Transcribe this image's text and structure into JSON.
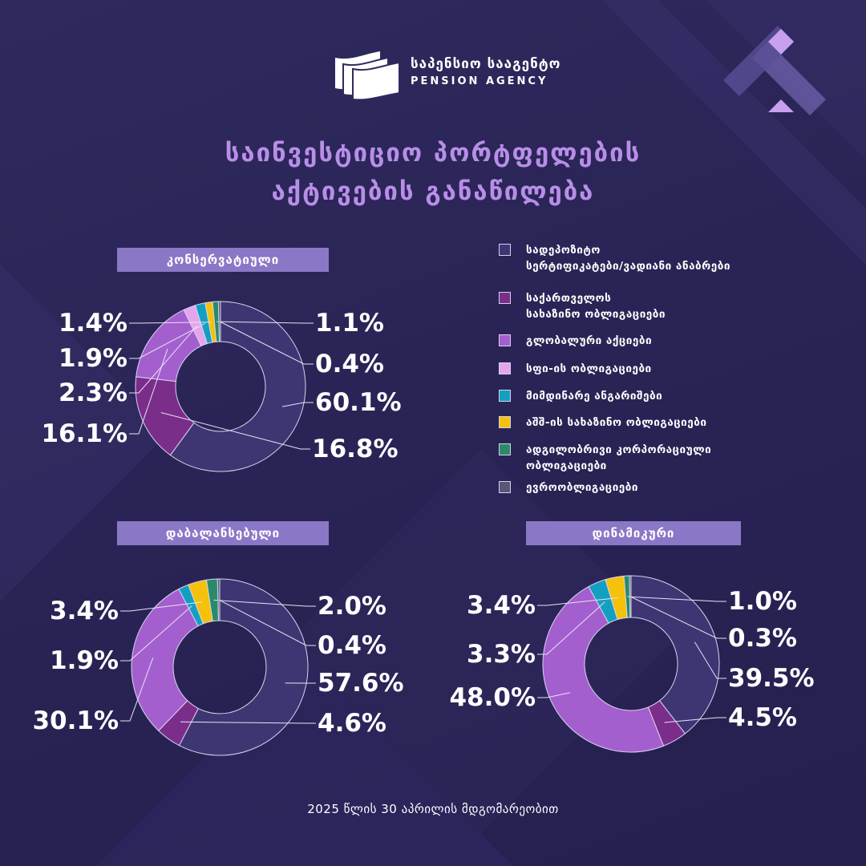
{
  "brand": {
    "name_ka": "საპენსიო სააგენტო",
    "name_en": "PENSION AGENCY"
  },
  "title": {
    "line1": "საინვესტიციო პორტფელების",
    "line2": "აქტივების განაწილება"
  },
  "footer": "2025 წლის 30 აპრილის მდგომარეობით",
  "legend": [
    {
      "label": "სადეპოზიტო\nსერტიფიკატები/ვადიანი ანაბრები",
      "color": "#3e3673"
    },
    {
      "label": "საქართველოს\nსახაზინო ობლიგაციები",
      "color": "#7b2d8a"
    },
    {
      "label": "გლობალური აქციები",
      "color": "#a45fcf"
    },
    {
      "label": "სფი-ის ობლიგაციები",
      "color": "#e4a5ee"
    },
    {
      "label": "მიმდინარე ანგარიშები",
      "color": "#13a0c0"
    },
    {
      "label": "აშშ-ის სახაზინო ობლიგაციები",
      "color": "#f5c10a"
    },
    {
      "label": "ადგილობრივი კორპორაციული\nობლიგაციები",
      "color": "#2a8a68"
    },
    {
      "label": "ევროობლიგაციები",
      "color": "#585778"
    }
  ],
  "chart_data": [
    {
      "type": "pie",
      "title": "კონსერვატიული",
      "categories": [
        "სადეპოზიტო სერტიფიკატები/ვადიანი ანაბრები",
        "საქართველოს სახაზინო ობლიგაციები",
        "გლობალური აქციები",
        "სფი-ის ობლიგაციები",
        "მიმდინარე ანგარიშები",
        "აშშ-ის სახაზინო ობლიგაციები",
        "ადგილობრივი კორპორაციული ობლიგაციები",
        "ევროობლიგაციები"
      ],
      "values": [
        60.1,
        16.8,
        16.1,
        2.3,
        1.9,
        1.4,
        1.1,
        0.4
      ],
      "labels": [
        "60.1%",
        "16.8%",
        "16.1%",
        "2.3%",
        "1.9%",
        "1.4%",
        "1.1%",
        "0.4%"
      ]
    },
    {
      "type": "pie",
      "title": "დაბალანსებული",
      "categories": [
        "სადეპოზიტო სერტიფიკატები/ვადიანი ანაბრები",
        "საქართველოს სახაზინო ობლიგაციები",
        "გლობალური აქციები",
        "მიმდინარე ანგარიშები",
        "აშშ-ის სახაზინო ობლიგაციები",
        "ადგილობრივი კორპორაციული ობლიგაციები",
        "ევროობლიგაციები"
      ],
      "values": [
        57.6,
        4.6,
        30.1,
        1.9,
        3.4,
        2.0,
        0.4
      ],
      "labels": [
        "57.6%",
        "4.6%",
        "30.1%",
        "1.9%",
        "3.4%",
        "2.0%",
        "0.4%"
      ]
    },
    {
      "type": "pie",
      "title": "დინამიკური",
      "categories": [
        "სადეპოზიტო სერტიფიკატები/ვადიანი ანაბრები",
        "საქართველოს სახაზინო ობლიგაციები",
        "გლობალური აქციები",
        "მიმდინარე ანგარიშები",
        "აშშ-ის სახაზინო ობლიგაციები",
        "ადგილობრივი კორპორაციული ობლიგაციები",
        "ევროობლიგაციები"
      ],
      "values": [
        39.5,
        4.5,
        48.0,
        3.3,
        3.4,
        1.0,
        0.3
      ],
      "labels": [
        "39.5%",
        "4.5%",
        "48.0%",
        "3.3%",
        "3.4%",
        "1.0%",
        "0.3%"
      ]
    }
  ]
}
